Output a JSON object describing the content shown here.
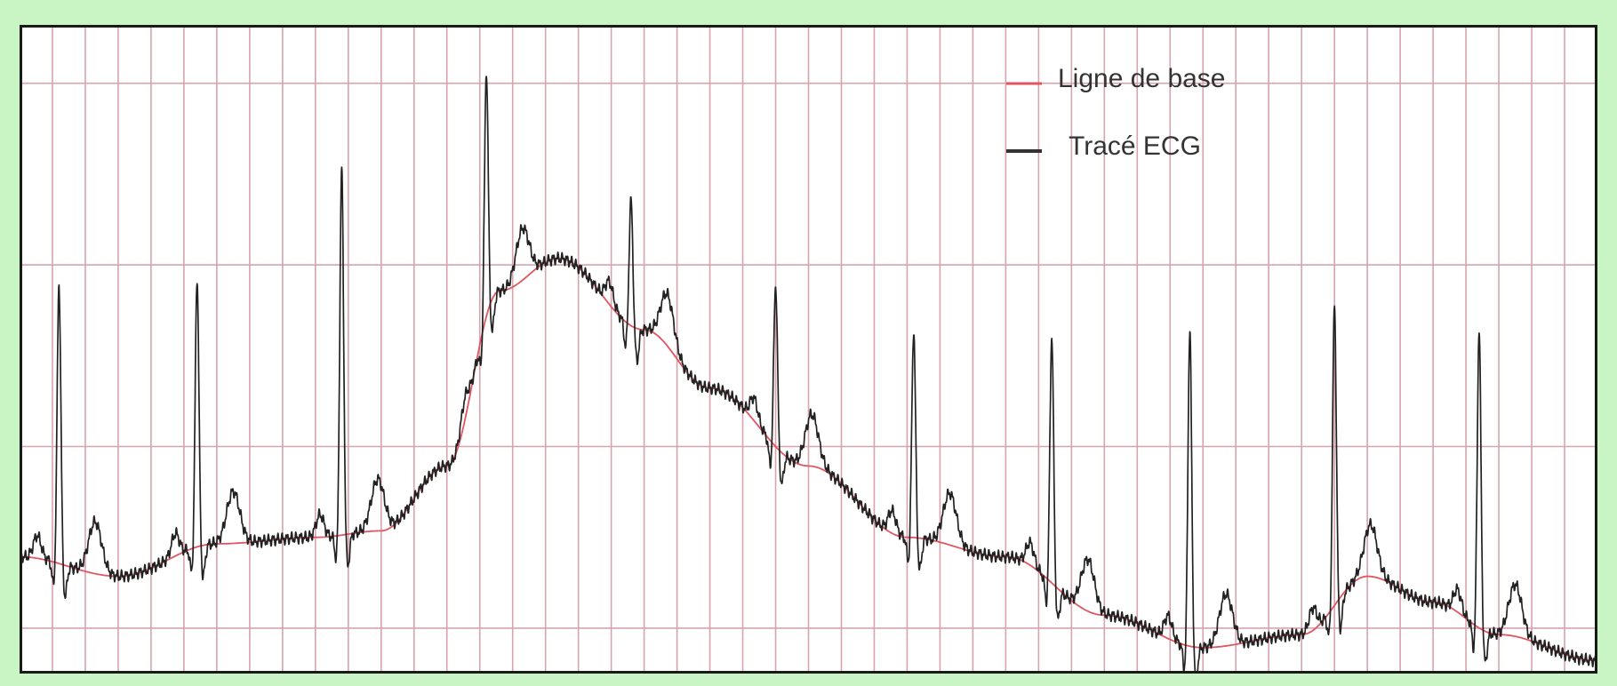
{
  "chart_data": {
    "type": "line",
    "title": "",
    "xlabel": "",
    "ylabel": "",
    "xlim": [
      0,
      24
    ],
    "ylim": [
      0,
      100
    ],
    "grid": true,
    "grid_color": "#d7a3ad",
    "legend_position": "top-right",
    "series": [
      {
        "name": "Ligne de base",
        "color": "#e05561",
        "x": [
          0,
          1.5,
          3,
          4.5,
          5.5,
          6.5,
          7.3,
          8.2,
          9.5,
          10.5,
          12,
          13.5,
          15,
          16.5,
          18,
          19.5,
          20.5,
          21.5,
          22.5,
          24
        ],
        "values": [
          18,
          15,
          20,
          21,
          22,
          32,
          59,
          64,
          53,
          44,
          32,
          21,
          18,
          9,
          4,
          6,
          15,
          11,
          6,
          2
        ]
      },
      {
        "name": "Tracé ECG",
        "color": "#222222",
        "beats_x": [
          0.6,
          2.7,
          4.9,
          7.1,
          9.3,
          11.5,
          13.6,
          15.7,
          17.8,
          20.0,
          22.2
        ],
        "r_peak_values": [
          60,
          61,
          78,
          93,
          73,
          60,
          53,
          52,
          53,
          57,
          53
        ]
      }
    ]
  }
}
